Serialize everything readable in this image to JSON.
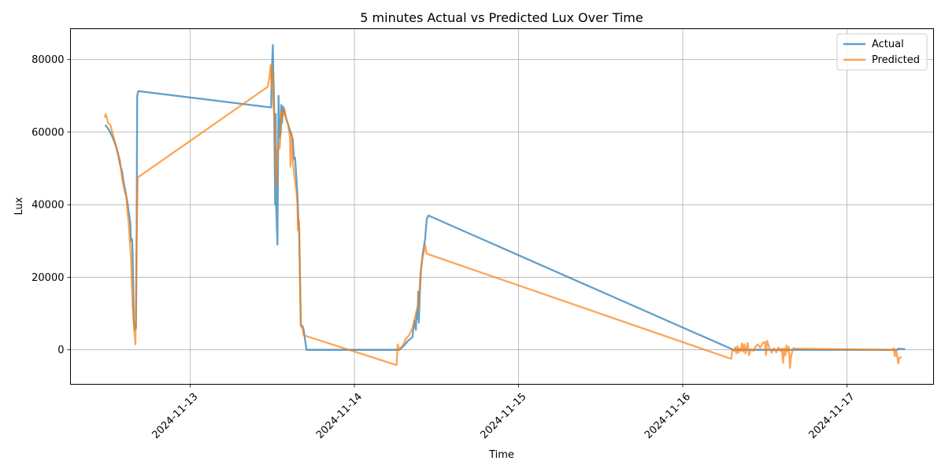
{
  "chart_data": {
    "type": "line",
    "title": "5 minutes Actual vs Predicted Lux Over Time",
    "xlabel": "Time",
    "ylabel": "Lux",
    "x_range": [
      "2024-11-12T06:30",
      "2024-11-17T12:40"
    ],
    "ylim": [
      -9500,
      88500
    ],
    "y_ticks": [
      0,
      20000,
      40000,
      60000,
      80000
    ],
    "x_ticks": [
      "2024-11-13",
      "2024-11-14",
      "2024-11-15",
      "2024-11-16",
      "2024-11-17"
    ],
    "grid": true,
    "legend_position": "top-right",
    "series": [
      {
        "name": "Actual",
        "color": "#1f77b4",
        "points": [
          [
            "2024-11-12T11:35",
            62000
          ],
          [
            "2024-11-12T12:10",
            60500
          ],
          [
            "2024-11-12T12:40",
            58500
          ],
          [
            "2024-11-12T13:10",
            56000
          ],
          [
            "2024-11-12T13:30",
            53500
          ],
          [
            "2024-11-12T13:45",
            51000
          ],
          [
            "2024-11-12T14:00",
            49500
          ],
          [
            "2024-11-12T14:15",
            46500
          ],
          [
            "2024-11-12T14:30",
            44000
          ],
          [
            "2024-11-12T14:50",
            40500
          ],
          [
            "2024-11-12T15:05",
            37000
          ],
          [
            "2024-11-12T15:15",
            35000
          ],
          [
            "2024-11-12T15:20",
            30000
          ],
          [
            "2024-11-12T15:30",
            30500
          ],
          [
            "2024-11-12T15:35",
            27000
          ],
          [
            "2024-11-12T15:45",
            8000
          ],
          [
            "2024-11-12T15:55",
            5500
          ],
          [
            "2024-11-12T16:05",
            6000
          ],
          [
            "2024-11-12T16:10",
            30000
          ],
          [
            "2024-11-12T16:15",
            70000
          ],
          [
            "2024-11-12T16:25",
            71300
          ],
          [
            "2024-11-13T11:50",
            66800
          ],
          [
            "2024-11-13T11:55",
            76000
          ],
          [
            "2024-11-13T12:05",
            84000
          ],
          [
            "2024-11-13T12:10",
            75000
          ],
          [
            "2024-11-13T12:15",
            70000
          ],
          [
            "2024-11-13T12:25",
            40000
          ],
          [
            "2024-11-13T12:30",
            65000
          ],
          [
            "2024-11-13T12:35",
            39000
          ],
          [
            "2024-11-13T12:45",
            29000
          ],
          [
            "2024-11-13T12:55",
            70000
          ],
          [
            "2024-11-13T13:05",
            58500
          ],
          [
            "2024-11-13T13:15",
            60000
          ],
          [
            "2024-11-13T13:20",
            67500
          ],
          [
            "2024-11-13T13:25",
            62500
          ],
          [
            "2024-11-13T13:35",
            67000
          ],
          [
            "2024-11-13T13:45",
            66000
          ],
          [
            "2024-11-13T14:00",
            64000
          ],
          [
            "2024-11-13T14:20",
            62000
          ],
          [
            "2024-11-13T14:40",
            60000
          ],
          [
            "2024-11-13T15:00",
            58000
          ],
          [
            "2024-11-13T15:10",
            52500
          ],
          [
            "2024-11-13T15:20",
            53000
          ],
          [
            "2024-11-13T15:30",
            48000
          ],
          [
            "2024-11-13T15:40",
            43000
          ],
          [
            "2024-11-13T15:50",
            35000
          ],
          [
            "2024-11-13T15:55",
            33000
          ],
          [
            "2024-11-13T16:10",
            7000
          ],
          [
            "2024-11-13T16:25",
            6500
          ],
          [
            "2024-11-13T16:35",
            5500
          ],
          [
            "2024-11-13T17:00",
            0
          ],
          [
            "2024-11-14T06:35",
            0
          ],
          [
            "2024-11-14T07:10",
            1000
          ],
          [
            "2024-11-14T07:50",
            2500
          ],
          [
            "2024-11-14T08:30",
            3500
          ],
          [
            "2024-11-14T08:45",
            8000
          ],
          [
            "2024-11-14T09:00",
            5500
          ],
          [
            "2024-11-14T09:05",
            10500
          ],
          [
            "2024-11-14T09:15",
            8500
          ],
          [
            "2024-11-14T09:20",
            16000
          ],
          [
            "2024-11-14T09:25",
            7500
          ],
          [
            "2024-11-14T09:35",
            16500
          ],
          [
            "2024-11-14T09:45",
            22500
          ],
          [
            "2024-11-14T10:00",
            26500
          ],
          [
            "2024-11-14T10:20",
            30500
          ],
          [
            "2024-11-14T10:35",
            36000
          ],
          [
            "2024-11-14T10:50",
            37000
          ],
          [
            "2024-11-16T07:25",
            0
          ],
          [
            "2024-11-17T07:20",
            0
          ],
          [
            "2024-11-17T07:30",
            300
          ],
          [
            "2024-11-17T08:30",
            200
          ]
        ]
      },
      {
        "name": "Predicted",
        "color": "#ff7f0e",
        "points": [
          [
            "2024-11-12T11:30",
            64000
          ],
          [
            "2024-11-12T11:40",
            65000
          ],
          [
            "2024-11-12T12:00",
            62500
          ],
          [
            "2024-11-12T12:20",
            62000
          ],
          [
            "2024-11-12T12:45",
            59000
          ],
          [
            "2024-11-12T13:20",
            55000
          ],
          [
            "2024-11-12T13:45",
            52000
          ],
          [
            "2024-11-12T13:55",
            49000
          ],
          [
            "2024-11-12T14:10",
            46000
          ],
          [
            "2024-11-12T14:30",
            43000
          ],
          [
            "2024-11-12T14:40",
            42500
          ],
          [
            "2024-11-12T14:50",
            38000
          ],
          [
            "2024-11-12T15:00",
            35000
          ],
          [
            "2024-11-12T15:10",
            30000
          ],
          [
            "2024-11-12T15:20",
            26000
          ],
          [
            "2024-11-12T15:35",
            12000
          ],
          [
            "2024-11-12T15:50",
            5000
          ],
          [
            "2024-11-12T16:00",
            1500
          ],
          [
            "2024-11-12T16:10",
            30000
          ],
          [
            "2024-11-12T16:20",
            47500
          ],
          [
            "2024-11-13T11:20",
            72500
          ],
          [
            "2024-11-13T11:35",
            75000
          ],
          [
            "2024-11-13T11:45",
            78500
          ],
          [
            "2024-11-13T11:55",
            72000
          ],
          [
            "2024-11-13T12:00",
            78000
          ],
          [
            "2024-11-13T12:05",
            70000
          ],
          [
            "2024-11-13T12:15",
            65500
          ],
          [
            "2024-11-13T12:25",
            60000
          ],
          [
            "2024-11-13T12:35",
            45000
          ],
          [
            "2024-11-13T12:45",
            55000
          ],
          [
            "2024-11-13T12:55",
            56000
          ],
          [
            "2024-11-13T13:05",
            55500
          ],
          [
            "2024-11-13T13:15",
            61500
          ],
          [
            "2024-11-13T13:20",
            65500
          ],
          [
            "2024-11-13T13:35",
            64500
          ],
          [
            "2024-11-13T13:45",
            66500
          ],
          [
            "2024-11-13T14:00",
            64000
          ],
          [
            "2024-11-13T14:20",
            62000
          ],
          [
            "2024-11-13T14:35",
            58500
          ],
          [
            "2024-11-13T14:40",
            50500
          ],
          [
            "2024-11-13T14:50",
            59500
          ],
          [
            "2024-11-13T15:00",
            52000
          ],
          [
            "2024-11-13T15:15",
            47500
          ],
          [
            "2024-11-13T15:30",
            44000
          ],
          [
            "2024-11-13T15:40",
            40500
          ],
          [
            "2024-11-13T15:45",
            33000
          ],
          [
            "2024-11-13T15:55",
            35500
          ],
          [
            "2024-11-13T16:10",
            6500
          ],
          [
            "2024-11-13T16:25",
            6000
          ],
          [
            "2024-11-13T16:35",
            4000
          ],
          [
            "2024-11-14T06:10",
            -4200
          ],
          [
            "2024-11-14T06:20",
            1500
          ],
          [
            "2024-11-14T06:35",
            0
          ],
          [
            "2024-11-14T06:50",
            700
          ],
          [
            "2024-11-14T07:10",
            1500
          ],
          [
            "2024-11-14T07:30",
            3000
          ],
          [
            "2024-11-14T08:00",
            4000
          ],
          [
            "2024-11-14T08:30",
            6000
          ],
          [
            "2024-11-14T08:45",
            8000
          ],
          [
            "2024-11-14T09:00",
            10000
          ],
          [
            "2024-11-14T09:15",
            12000
          ],
          [
            "2024-11-14T09:30",
            16000
          ],
          [
            "2024-11-14T09:40",
            21000
          ],
          [
            "2024-11-14T09:55",
            25000
          ],
          [
            "2024-11-14T10:10",
            27000
          ],
          [
            "2024-11-14T10:20",
            29000
          ],
          [
            "2024-11-14T10:35",
            26500
          ],
          [
            "2024-11-16T07:05",
            -2500
          ],
          [
            "2024-11-16T07:15",
            0
          ],
          [
            "2024-11-16T07:30",
            -300
          ],
          [
            "2024-11-16T07:40",
            700
          ],
          [
            "2024-11-16T07:50",
            -1000
          ],
          [
            "2024-11-16T08:00",
            1000
          ],
          [
            "2024-11-16T08:10",
            -800
          ],
          [
            "2024-11-16T08:20",
            400
          ],
          [
            "2024-11-16T08:30",
            -300
          ],
          [
            "2024-11-16T08:40",
            1800
          ],
          [
            "2024-11-16T08:50",
            -500
          ],
          [
            "2024-11-16T09:00",
            1500
          ],
          [
            "2024-11-16T09:10",
            -1000
          ],
          [
            "2024-11-16T09:20",
            800
          ],
          [
            "2024-11-16T09:30",
            1900
          ],
          [
            "2024-11-16T09:40",
            -1500
          ],
          [
            "2024-11-16T09:50",
            -500
          ],
          [
            "2024-11-16T10:00",
            200
          ],
          [
            "2024-11-16T10:20",
            -300
          ],
          [
            "2024-11-16T10:40",
            1000
          ],
          [
            "2024-11-16T11:00",
            1500
          ],
          [
            "2024-11-16T11:20",
            600
          ],
          [
            "2024-11-16T11:40",
            1800
          ],
          [
            "2024-11-16T12:00",
            2200
          ],
          [
            "2024-11-16T12:10",
            -1500
          ],
          [
            "2024-11-16T12:20",
            2500
          ],
          [
            "2024-11-16T12:40",
            500
          ],
          [
            "2024-11-16T13:00",
            -800
          ],
          [
            "2024-11-16T13:20",
            400
          ],
          [
            "2024-11-16T13:40",
            -700
          ],
          [
            "2024-11-16T14:00",
            600
          ],
          [
            "2024-11-16T14:20",
            -400
          ],
          [
            "2024-11-16T14:30",
            300
          ],
          [
            "2024-11-16T14:40",
            -3600
          ],
          [
            "2024-11-16T14:50",
            400
          ],
          [
            "2024-11-16T15:00",
            -1500
          ],
          [
            "2024-11-16T15:10",
            1200
          ],
          [
            "2024-11-16T15:20",
            -500
          ],
          [
            "2024-11-16T15:30",
            800
          ],
          [
            "2024-11-16T15:40",
            -5000
          ],
          [
            "2024-11-16T15:50",
            -2000
          ],
          [
            "2024-11-16T16:00",
            -500
          ],
          [
            "2024-11-16T16:10",
            500
          ],
          [
            "2024-11-16T16:30",
            300
          ],
          [
            "2024-11-17T06:40",
            0
          ],
          [
            "2024-11-17T06:50",
            400
          ],
          [
            "2024-11-17T07:00",
            -1800
          ],
          [
            "2024-11-17T07:10",
            0
          ],
          [
            "2024-11-17T07:20",
            -1500
          ],
          [
            "2024-11-17T07:30",
            -3800
          ],
          [
            "2024-11-17T07:40",
            -2200
          ],
          [
            "2024-11-17T08:00",
            -2000
          ]
        ]
      }
    ]
  }
}
